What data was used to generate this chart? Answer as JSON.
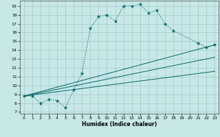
{
  "xlabel": "Humidex (Indice chaleur)",
  "bg_color": "#c8e8e8",
  "line_color": "#006666",
  "grid_color": "#a0c8c8",
  "xlim": [
    -0.5,
    23.5
  ],
  "ylim": [
    6.8,
    19.6
  ],
  "xticks": [
    0,
    1,
    2,
    3,
    4,
    5,
    6,
    7,
    8,
    9,
    10,
    11,
    12,
    13,
    14,
    15,
    16,
    17,
    18,
    19,
    20,
    21,
    22,
    23
  ],
  "yticks": [
    7,
    8,
    9,
    10,
    11,
    12,
    13,
    14,
    15,
    16,
    17,
    18,
    19
  ],
  "main_x": [
    0,
    1,
    2,
    3,
    4,
    5,
    6,
    7,
    8,
    9,
    10,
    11,
    12,
    13,
    14,
    15,
    16,
    17,
    18,
    21,
    22,
    23
  ],
  "main_y": [
    8.8,
    8.8,
    8.0,
    8.4,
    8.3,
    7.5,
    9.5,
    11.4,
    16.5,
    17.8,
    18.0,
    17.3,
    19.0,
    19.0,
    19.2,
    18.2,
    18.5,
    17.0,
    16.2,
    14.8,
    14.3,
    14.6
  ],
  "trend_lines": [
    {
      "x": [
        0,
        23
      ],
      "y": [
        8.8,
        14.6
      ]
    },
    {
      "x": [
        0,
        23
      ],
      "y": [
        8.8,
        13.2
      ]
    },
    {
      "x": [
        0,
        23
      ],
      "y": [
        8.8,
        11.6
      ]
    }
  ]
}
